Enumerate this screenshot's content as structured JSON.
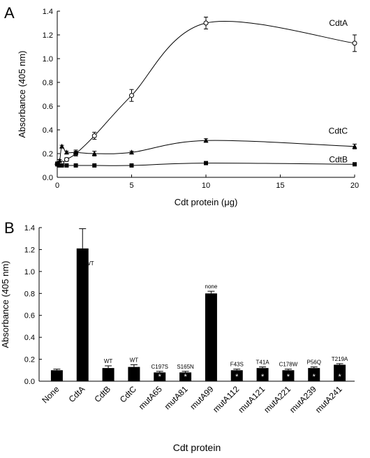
{
  "chart_data": [
    {
      "panel_label": "A",
      "type": "line",
      "xlabel": "Cdt protein (μg)",
      "ylabel": "Absorbance (405 nm)",
      "xlim": [
        0,
        20
      ],
      "ylim": [
        0,
        1.4
      ],
      "xticks": [
        0,
        5,
        10,
        15,
        20
      ],
      "yticks": [
        0,
        0.2,
        0.4,
        0.6,
        0.8,
        1.0,
        1.2,
        1.4
      ],
      "xtick_labels": [
        "0",
        "5",
        "10",
        "15",
        "20"
      ],
      "ytick_labels": [
        "0.0",
        "0.2",
        "0.4",
        "0.6",
        "0.8",
        "1.0",
        "1.2",
        "1.4"
      ],
      "series": [
        {
          "name": "CdtA",
          "marker": "open-circle",
          "x": [
            0,
            0.16,
            0.31,
            0.63,
            1.25,
            2.5,
            5,
            10,
            20
          ],
          "y": [
            0.11,
            0.11,
            0.12,
            0.15,
            0.2,
            0.35,
            0.69,
            1.3,
            1.13
          ],
          "err": [
            0.01,
            0.01,
            0.01,
            0.015,
            0.02,
            0.03,
            0.05,
            0.05,
            0.07
          ]
        },
        {
          "name": "CdtC",
          "marker": "filled-triangle",
          "x": [
            0,
            0.16,
            0.31,
            0.63,
            1.25,
            2.5,
            5,
            10,
            20
          ],
          "y": [
            0.12,
            0.14,
            0.26,
            0.21,
            0.21,
            0.2,
            0.21,
            0.31,
            0.26
          ],
          "err": [
            0.01,
            0.01,
            0.01,
            0.01,
            0.02,
            0.02,
            0.01,
            0.015,
            0.02
          ]
        },
        {
          "name": "CdtB",
          "marker": "filled-square",
          "x": [
            0,
            0.16,
            0.31,
            0.63,
            1.25,
            2.5,
            5,
            10,
            20
          ],
          "y": [
            0.11,
            0.1,
            0.1,
            0.1,
            0.1,
            0.1,
            0.1,
            0.12,
            0.11
          ],
          "err": [
            0,
            0,
            0,
            0,
            0,
            0,
            0,
            0,
            0
          ]
        }
      ]
    },
    {
      "panel_label": "B",
      "type": "bar",
      "xlabel": "Cdt protein",
      "ylabel": "Absorbance (405 nm)",
      "ylim": [
        0,
        1.4
      ],
      "yticks": [
        0,
        0.2,
        0.4,
        0.6,
        0.8,
        1.0,
        1.2,
        1.4
      ],
      "ytick_labels": [
        "0.0",
        "0.2",
        "0.4",
        "0.6",
        "0.8",
        "1.0",
        "1.2",
        "1.4"
      ],
      "categories": [
        "None",
        "CdtA",
        "CdtB",
        "CdtC",
        "mutA65",
        "mutA81",
        "mutA99",
        "mutA112",
        "mutA121",
        "mutA221",
        "mutA239",
        "mutA241"
      ],
      "values": [
        0.1,
        1.21,
        0.12,
        0.13,
        0.08,
        0.08,
        0.8,
        0.1,
        0.12,
        0.1,
        0.12,
        0.15
      ],
      "errors": [
        0.01,
        0.18,
        0.02,
        0.02,
        0.01,
        0.01,
        0.02,
        0.01,
        0.01,
        0.01,
        0.01,
        0.01
      ],
      "annotations": [
        "",
        "WT",
        "WT",
        "WT",
        "C197S",
        "S165N",
        "none",
        "F43S",
        "T41A",
        "C178W",
        "P56Q",
        "T219A"
      ],
      "asterisk": [
        false,
        false,
        false,
        false,
        true,
        true,
        false,
        true,
        true,
        true,
        true,
        true
      ],
      "asterisk_symbol": "*"
    }
  ]
}
